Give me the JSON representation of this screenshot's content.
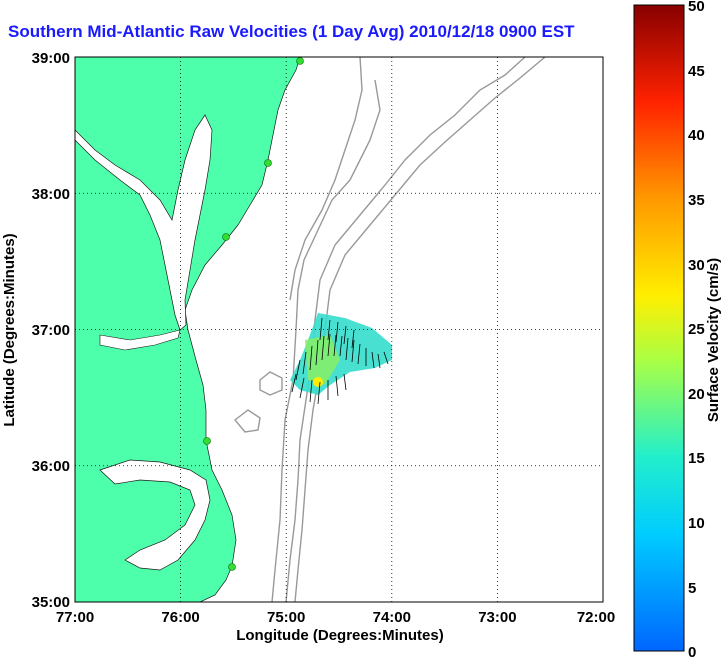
{
  "title": "Southern Mid-Atlantic Raw Velocities (1 Day Avg) 2010/12/18 0900 EST",
  "axes": {
    "x_label": "Longitude (Degrees:Minutes)",
    "y_label": "Latitude (Degrees:Minutes)",
    "x_ticks": [
      "77:00",
      "76:00",
      "75:00",
      "74:00",
      "73:00",
      "72:00"
    ],
    "y_ticks": [
      "39:00",
      "38:00",
      "37:00",
      "36:00",
      "35:00"
    ]
  },
  "colorbar": {
    "label": "Surface Velocity (cm/s)",
    "ticks": [
      "50",
      "45",
      "40",
      "35",
      "30",
      "25",
      "20",
      "15",
      "10",
      "5",
      "0"
    ],
    "range": [
      0,
      50
    ]
  },
  "colors": {
    "land": "#4dffaa",
    "title": "#1a1aff",
    "bathymetry": "#999999",
    "stations": "#33dd33"
  },
  "stations_count_visible": 6
}
